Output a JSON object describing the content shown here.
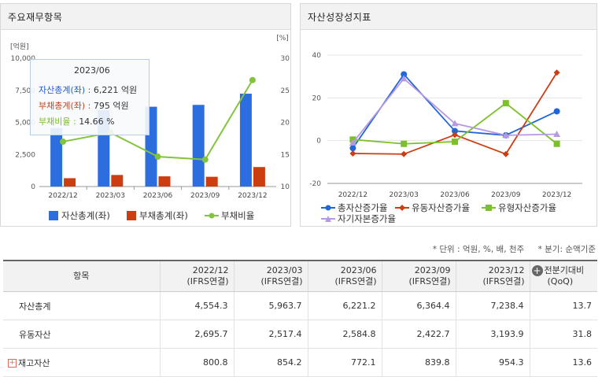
{
  "left_panel": {
    "title": "주요재무항목"
  },
  "right_panel": {
    "title": "자산성장성지표"
  },
  "tooltip": {
    "date": "2023/06",
    "rows": [
      {
        "label": "자산총계(좌)",
        "value": "6,221 억원",
        "color": "#1e5bd4"
      },
      {
        "label": "부채총계(좌)",
        "value": "795 억원",
        "color": "#c8421a"
      },
      {
        "label": "부채비율",
        "value": "14.66 %",
        "color": "#7cc02a"
      }
    ]
  },
  "colors": {
    "assets": "#2c6ee0",
    "liabilities": "#cc3d12",
    "ratio": "#82c43a",
    "total_growth": "#2166d6",
    "current_growth": "#cc3d12",
    "tangible_growth": "#7cc02a",
    "equity_growth": "#b59ae3"
  },
  "chart_data": [
    {
      "type": "bar",
      "title": "주요재무항목",
      "categories": [
        "2022/12",
        "2023/03",
        "2023/06",
        "2023/09",
        "2023/12"
      ],
      "left_axis": {
        "unit": "[억원]",
        "ticks": [
          "10,000",
          "7,500",
          "5,000",
          "2,500",
          "0"
        ],
        "ylim": [
          0,
          10000
        ]
      },
      "right_axis": {
        "unit": "[%]",
        "ticks": [
          "30",
          "25",
          "20",
          "15",
          "10"
        ],
        "ylim": [
          10,
          30
        ]
      },
      "series": [
        {
          "name": "자산총계(좌)",
          "type": "bar",
          "axis": "left",
          "values": [
            4554.3,
            5963.7,
            6221.2,
            6364.4,
            7238.4
          ]
        },
        {
          "name": "부채총계(좌)",
          "type": "bar",
          "axis": "left",
          "values": [
            650,
            900,
            795,
            760,
            1520
          ]
        },
        {
          "name": "부채비율",
          "type": "line",
          "axis": "right",
          "values": [
            17.0,
            18.4,
            14.66,
            14.2,
            26.6
          ]
        }
      ]
    },
    {
      "type": "line",
      "title": "자산성장성지표",
      "categories": [
        "2022/12",
        "2023/03",
        "2023/06",
        "2023/09",
        "2023/12"
      ],
      "y_axis": {
        "ticks": [
          "40",
          "20",
          "0",
          "-20"
        ],
        "ylim": [
          -20,
          40
        ]
      },
      "series": [
        {
          "name": "총자산증가율",
          "marker": "circle",
          "values": [
            -3.5,
            31,
            4.5,
            2.5,
            13.7
          ]
        },
        {
          "name": "유동자산증가율",
          "marker": "diamond",
          "values": [
            -6,
            -6.3,
            2.7,
            -6.3,
            31.8
          ]
        },
        {
          "name": "유형자산증가율",
          "marker": "square",
          "values": [
            0.5,
            -1.5,
            -0.5,
            17.5,
            -1.5
          ]
        },
        {
          "name": "자기자본증가율",
          "marker": "triangle",
          "values": [
            -1,
            29,
            8,
            2.5,
            3
          ]
        }
      ]
    }
  ],
  "notes": {
    "unit": "* 단위 : 억원, %, 배, 천주",
    "quarter": "* 분기: 순액기준"
  },
  "table": {
    "header_item": "항목",
    "columns": [
      {
        "period": "2022/12",
        "basis": "(IFRS연결)"
      },
      {
        "period": "2023/03",
        "basis": "(IFRS연결)"
      },
      {
        "period": "2023/06",
        "basis": "(IFRS연결)"
      },
      {
        "period": "2023/09",
        "basis": "(IFRS연결)"
      },
      {
        "period": "2023/12",
        "basis": "(IFRS연결)"
      }
    ],
    "last_col": {
      "label": "전분기대비",
      "sub": "(QoQ)"
    },
    "rows": [
      {
        "label": "자산총계",
        "expandable": false,
        "values": [
          "4,554.3",
          "5,963.7",
          "6,221.2",
          "6,364.4",
          "7,238.4"
        ],
        "qoq": "13.7"
      },
      {
        "label": "유동자산",
        "expandable": false,
        "values": [
          "2,695.7",
          "2,517.4",
          "2,584.8",
          "2,422.7",
          "3,193.9"
        ],
        "qoq": "31.8"
      },
      {
        "label": "재고자산",
        "expandable": true,
        "values": [
          "800.8",
          "854.2",
          "772.1",
          "839.8",
          "954.3"
        ],
        "qoq": "13.6"
      }
    ]
  }
}
